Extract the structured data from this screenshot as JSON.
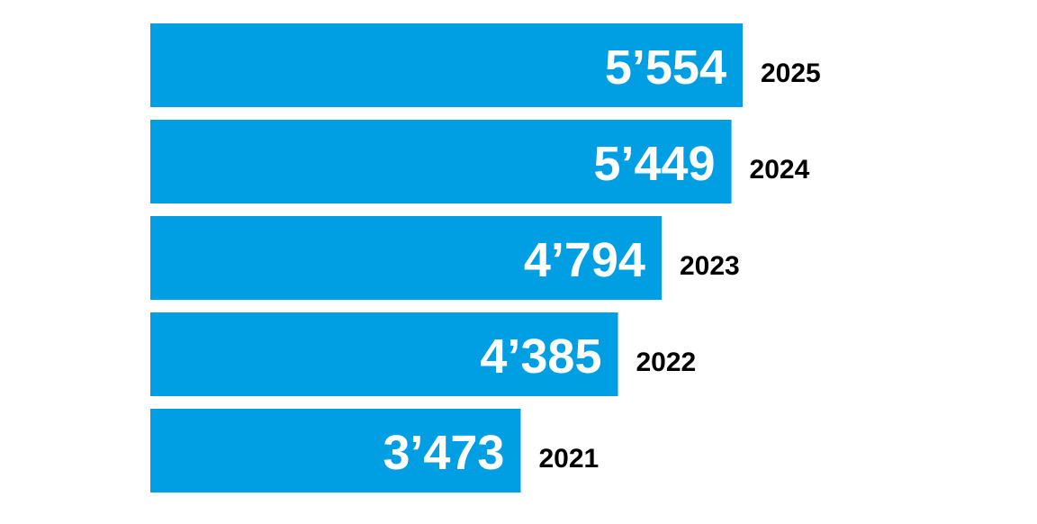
{
  "chart_data": {
    "type": "bar",
    "orientation": "horizontal",
    "categories": [
      "2025",
      "2024",
      "2023",
      "2022",
      "2021"
    ],
    "values": [
      5554,
      5449,
      4794,
      4385,
      3473
    ],
    "value_labels": [
      "5’554",
      "5’449",
      "4’794",
      "4’385",
      "3’473"
    ],
    "title": "",
    "xlabel": "",
    "ylabel": "",
    "grid": false,
    "bar_color": "#009fe3",
    "value_label_color": "#ffffff",
    "category_label_color": "#000000"
  }
}
